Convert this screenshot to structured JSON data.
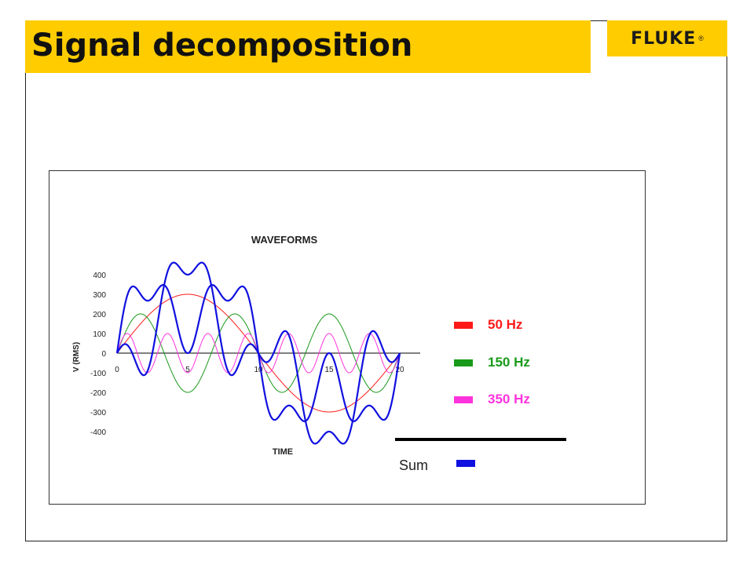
{
  "slide": {
    "title": "Signal decomposition",
    "logo_text": "FLUKE",
    "logo_mark": "®"
  },
  "chart_data": {
    "type": "line",
    "title": "WAVEFORMS",
    "xlabel": "TIME",
    "ylabel": "V (RMS)",
    "xlim": [
      0,
      20
    ],
    "ylim": [
      -400,
      400
    ],
    "x_ticks": [
      "0",
      "5",
      "10",
      "15",
      "20"
    ],
    "y_ticks": [
      "400",
      "300",
      "200",
      "100",
      "0",
      "-100",
      "-200",
      "-300",
      "-400"
    ],
    "series": [
      {
        "name": "50 Hz",
        "color": "#ff1a1a",
        "amplitude": 300,
        "harmonic": 1,
        "phase_deg": 0
      },
      {
        "name": "150 Hz",
        "color": "#1a9a1a",
        "amplitude": 200,
        "harmonic": 3,
        "phase_deg": 0
      },
      {
        "name": "350 Hz",
        "color": "#ff33dd",
        "amplitude": 100,
        "harmonic": 7,
        "phase_deg": 0
      },
      {
        "name": "Sum",
        "color": "#1010e0",
        "components": [
          "50 Hz",
          "150 Hz",
          "350 Hz"
        ]
      },
      {
        "name": "",
        "color": "#1010e0",
        "components": [
          "50 Hz",
          "150 Hz (inverted)",
          "350 Hz"
        ]
      }
    ]
  },
  "legend": [
    {
      "label": "50 Hz",
      "color": "#ff1a1a"
    },
    {
      "label": "150 Hz",
      "color": "#1a9a1a"
    },
    {
      "label": "350 Hz",
      "color": "#ff33dd"
    }
  ],
  "sum_legend": {
    "label": "Sum",
    "color": "#1010e0"
  }
}
